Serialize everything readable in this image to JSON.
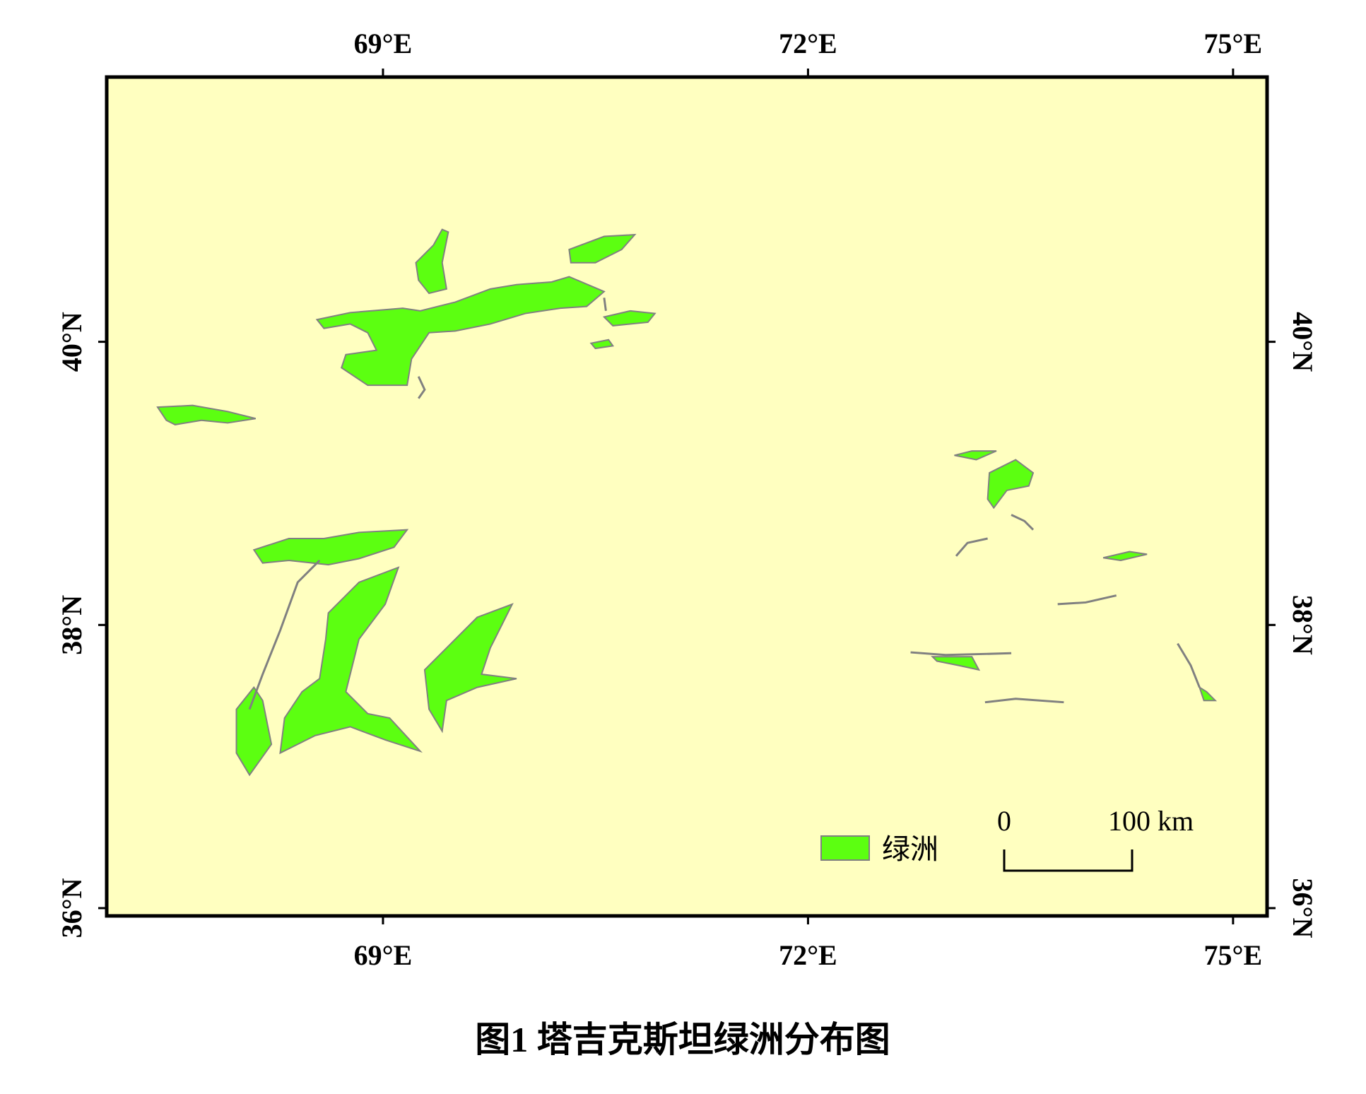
{
  "map": {
    "title": "图1  塔吉克斯坦绿洲分布图",
    "lonlim": [
      67.05,
      75.24
    ],
    "latlim": [
      35.945,
      41.87
    ],
    "lon_ticks": [
      {
        "value": 69,
        "label": "69°E"
      },
      {
        "value": 72,
        "label": "72°E"
      },
      {
        "value": 75,
        "label": "75°E"
      }
    ],
    "lat_ticks": [
      {
        "value": 40,
        "label": "40°N"
      },
      {
        "value": 38,
        "label": "38°N"
      },
      {
        "value": 36,
        "label": "36°N"
      }
    ],
    "legend": {
      "label": "绿洲",
      "color": "#5cff11"
    },
    "scale_bar": {
      "start_label": "0",
      "end_label": "100 km"
    },
    "background": "#ffffc0"
  }
}
